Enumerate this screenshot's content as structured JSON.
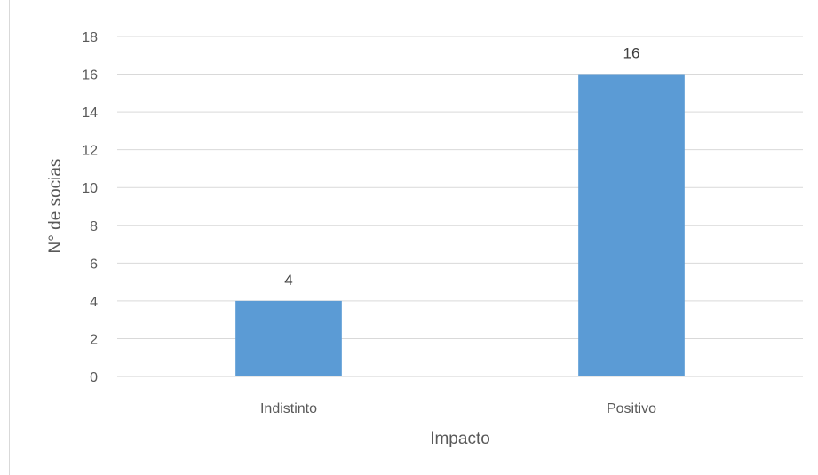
{
  "chart_data": {
    "type": "bar",
    "categories": [
      "Indistinto",
      "Positivo"
    ],
    "values": [
      4,
      16
    ],
    "data_labels": [
      "4",
      "16"
    ],
    "title": "",
    "xlabel": "Impacto",
    "ylabel": "N° de socias",
    "ylim": [
      0,
      18
    ],
    "yticks": [
      "0",
      "2",
      "4",
      "6",
      "8",
      "10",
      "12",
      "14",
      "16",
      "18"
    ],
    "grid": true,
    "legend": "none",
    "bar_color": "#5b9bd5",
    "grid_color": "#d9d9d9"
  }
}
